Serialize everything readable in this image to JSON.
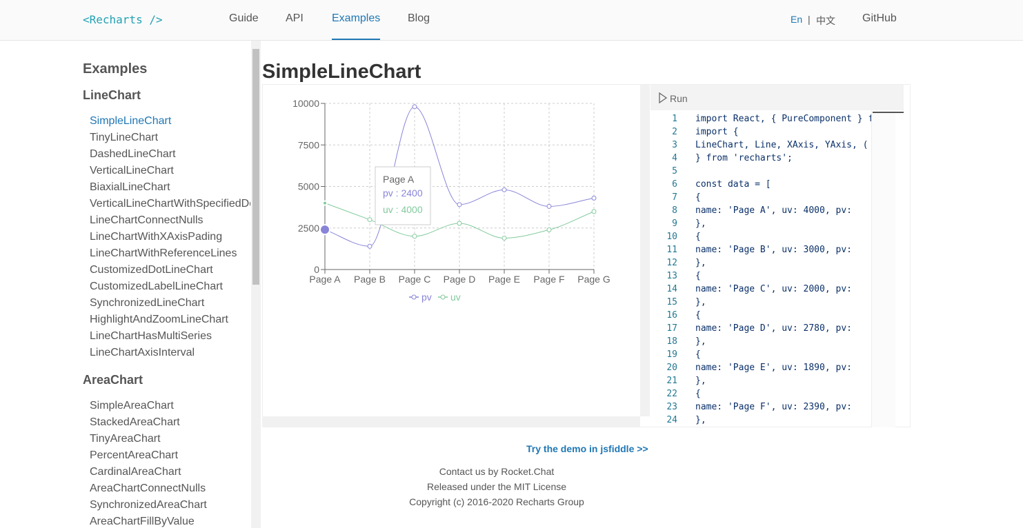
{
  "header": {
    "logo": "<Recharts />",
    "nav": [
      "Guide",
      "API",
      "Examples",
      "Blog"
    ],
    "active_nav": 2,
    "lang_en": "En",
    "lang_sep": "|",
    "lang_zh": "中文",
    "github": "GitHub"
  },
  "sidebar": {
    "title": "Examples",
    "groups": [
      {
        "name": "LineChart",
        "items": [
          "SimpleLineChart",
          "TinyLineChart",
          "DashedLineChart",
          "VerticalLineChart",
          "BiaxialLineChart",
          "VerticalLineChartWithSpecifiedDomain",
          "LineChartConnectNulls",
          "LineChartWithXAxisPading",
          "LineChartWithReferenceLines",
          "CustomizedDotLineChart",
          "CustomizedLabelLineChart",
          "SynchronizedLineChart",
          "HighlightAndZoomLineChart",
          "LineChartHasMultiSeries",
          "LineChartAxisInterval"
        ]
      },
      {
        "name": "AreaChart",
        "items": [
          "SimpleAreaChart",
          "StackedAreaChart",
          "TinyAreaChart",
          "PercentAreaChart",
          "CardinalAreaChart",
          "AreaChartConnectNulls",
          "SynchronizedAreaChart",
          "AreaChartFillByValue"
        ]
      }
    ]
  },
  "page_title": "SimpleLineChart",
  "chart_data": {
    "type": "line",
    "categories": [
      "Page A",
      "Page B",
      "Page C",
      "Page D",
      "Page E",
      "Page F",
      "Page G"
    ],
    "series": [
      {
        "name": "pv",
        "color": "#8884d8",
        "values": [
          2400,
          1398,
          9800,
          3908,
          4800,
          3800,
          4300
        ]
      },
      {
        "name": "uv",
        "color": "#82ca9d",
        "values": [
          4000,
          3000,
          2000,
          2780,
          1890,
          2390,
          3490
        ]
      }
    ],
    "ylim": [
      0,
      10000
    ],
    "yticks": [
      0,
      2500,
      5000,
      7500,
      10000
    ],
    "grid": true,
    "tooltip": {
      "title": "Page A",
      "rows": [
        "pv : 2400",
        "uv : 4000"
      ]
    }
  },
  "code": {
    "run": "Run",
    "lines": [
      {
        "n": 1,
        "text": "import React, { PureComponent } f"
      },
      {
        "n": 2,
        "text": "import {"
      },
      {
        "n": 3,
        "text": "  LineChart, Line, XAxis, YAxis, ("
      },
      {
        "n": 4,
        "text": "} from 'recharts';"
      },
      {
        "n": 5,
        "text": null
      },
      {
        "n": 6,
        "text": "const data = ["
      },
      {
        "n": 7,
        "text": "  {"
      },
      {
        "n": 8,
        "text": "    name: 'Page A', uv: 4000, pv:"
      },
      {
        "n": 9,
        "text": "  },"
      },
      {
        "n": 10,
        "text": "  {"
      },
      {
        "n": 11,
        "text": "    name: 'Page B', uv: 3000, pv:"
      },
      {
        "n": 12,
        "text": "  },"
      },
      {
        "n": 13,
        "text": "  {"
      },
      {
        "n": 14,
        "text": "    name: 'Page C', uv: 2000, pv:"
      },
      {
        "n": 15,
        "text": "  },"
      },
      {
        "n": 16,
        "text": "  {"
      },
      {
        "n": 17,
        "text": "    name: 'Page D', uv: 2780, pv:"
      },
      {
        "n": 18,
        "text": "  },"
      },
      {
        "n": 19,
        "text": "  {"
      },
      {
        "n": 20,
        "text": "    name: 'Page E', uv: 1890, pv:"
      },
      {
        "n": 21,
        "text": "  },"
      },
      {
        "n": 22,
        "text": "  {"
      },
      {
        "n": 23,
        "text": "    name: 'Page F', uv: 2390, pv:"
      },
      {
        "n": 24,
        "text": "  },"
      }
    ]
  },
  "footer": {
    "jsfiddle": "Try the demo in jsfiddle >>",
    "lines": [
      "Contact us by Rocket.Chat",
      "Released under the MIT License",
      "Copyright (c) 2016-2020 Recharts Group"
    ]
  }
}
